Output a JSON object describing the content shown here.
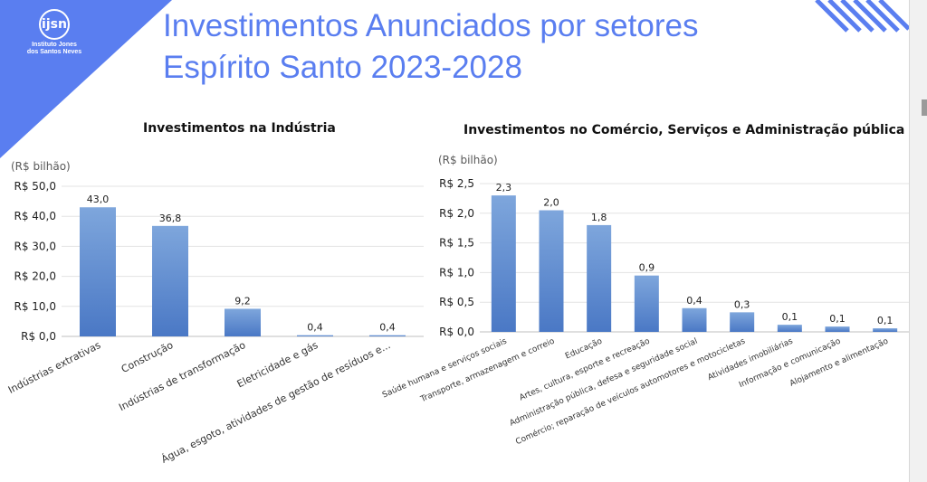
{
  "header": {
    "title_line1": "Investimentos Anunciados por setores",
    "title_line2": "Espírito Santo 2023-2028"
  },
  "logo": {
    "mark": "ijsn",
    "name_line1": "Instituto Jones",
    "name_line2": "dos Santos Neves"
  },
  "colors": {
    "accent": "#5a7ef0",
    "bar": "#4a78c5",
    "bar_light": "#7ea6dc"
  },
  "chart_data": [
    {
      "type": "bar",
      "title": "Investimentos na Indústria",
      "unit": "(R$ bilhão)",
      "categories": [
        "Indústrias extrativas",
        "Construção",
        "Indústrias de transformação",
        "Eletricidade e gás",
        "Água, esgoto, atividades de gestão de resíduos e..."
      ],
      "values": [
        43.0,
        36.8,
        9.2,
        0.4,
        0.4
      ],
      "value_labels": [
        "43,0",
        "36,8",
        "9,2",
        "0,4",
        "0,4"
      ],
      "yticks": [
        "R$ 0,0",
        "R$ 10,0",
        "R$ 20,0",
        "R$ 30,0",
        "R$ 40,0",
        "R$ 50,0"
      ],
      "ylim": [
        0,
        50
      ],
      "grid": true
    },
    {
      "type": "bar",
      "title": "Investimentos no Comércio, Serviços e Administração pública",
      "unit": "(R$ bilhão)",
      "categories": [
        "Saúde humana e serviços sociais",
        "Transporte, armazenagem e correio",
        "Educação",
        "Artes, cultura, esporte e recreação",
        "Administração pública, defesa e seguridade social",
        "Comércio; reparação de veículos automotores e motocicletas",
        "Atividades imobiliárias",
        "Informação e comunicação",
        "Alojamento e alimentação"
      ],
      "values": [
        2.3,
        2.05,
        1.8,
        0.95,
        0.4,
        0.33,
        0.12,
        0.09,
        0.06
      ],
      "value_labels": [
        "2,3",
        "2,0",
        "1,8",
        "0,9",
        "0,4",
        "0,3",
        "0,1",
        "0,1",
        "0,1"
      ],
      "yticks": [
        "R$ 0,0",
        "R$ 0,5",
        "R$ 1,0",
        "R$ 1,5",
        "R$ 2,0",
        "R$ 2,5"
      ],
      "ylim": [
        0,
        2.5
      ],
      "grid": true
    }
  ]
}
